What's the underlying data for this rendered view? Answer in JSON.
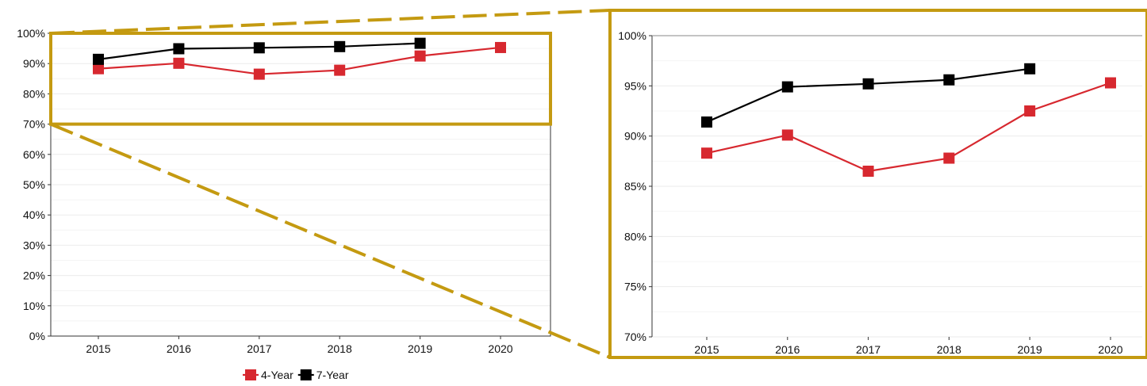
{
  "chart_data": [
    {
      "type": "line",
      "title": "",
      "xlabel": "",
      "ylabel": "",
      "categories": [
        "2015",
        "2016",
        "2017",
        "2018",
        "2019",
        "2020"
      ],
      "ylim": [
        0,
        100
      ],
      "yticks": [
        "0%",
        "10%",
        "20%",
        "30%",
        "40%",
        "50%",
        "60%",
        "70%",
        "80%",
        "90%",
        "100%"
      ],
      "series": [
        {
          "name": "4-Year",
          "color": "#d7282f",
          "marker": "square",
          "values": [
            88.3,
            90.1,
            86.5,
            87.8,
            92.5,
            95.3
          ]
        },
        {
          "name": "7-Year",
          "color": "#000000",
          "marker": "square",
          "values": [
            91.4,
            94.9,
            95.2,
            95.6,
            96.7,
            null
          ]
        }
      ],
      "legend_position": "bottom",
      "grid": "horizontal",
      "zoom_box_range": [
        70,
        100
      ]
    },
    {
      "type": "line",
      "title": "",
      "xlabel": "",
      "ylabel": "",
      "categories": [
        "2015",
        "2016",
        "2017",
        "2018",
        "2019",
        "2020"
      ],
      "ylim": [
        70,
        100
      ],
      "yticks": [
        "70%",
        "75%",
        "80%",
        "85%",
        "90%",
        "95%",
        "100%"
      ],
      "series": [
        {
          "name": "4-Year",
          "color": "#d7282f",
          "marker": "square",
          "values": [
            88.3,
            90.1,
            86.5,
            87.8,
            92.5,
            95.3
          ]
        },
        {
          "name": "7-Year",
          "color": "#000000",
          "marker": "square",
          "values": [
            91.4,
            94.9,
            95.2,
            95.6,
            96.7,
            null
          ]
        }
      ],
      "grid": "horizontal"
    }
  ],
  "styles": {
    "zoom_frame_color": "#c49a11",
    "grid_color": "#ebebeb",
    "axis_color": "#333333"
  }
}
